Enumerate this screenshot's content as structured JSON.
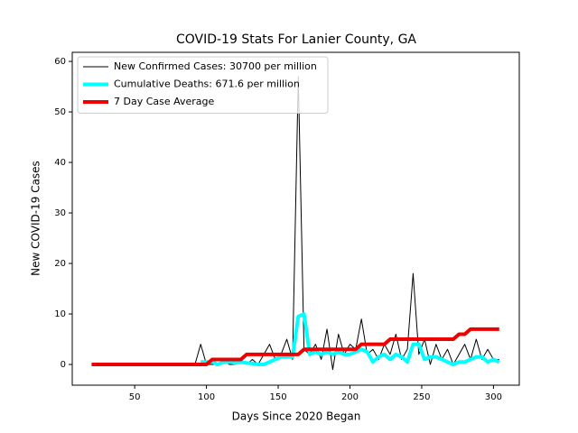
{
  "chart_data": {
    "type": "line",
    "title": "COVID-19 Stats For Lanier County, GA",
    "xlabel": "Days Since 2020 Began",
    "ylabel": "New COVID-19 Cases",
    "x": [
      20,
      24,
      28,
      32,
      36,
      40,
      44,
      48,
      52,
      56,
      60,
      64,
      68,
      72,
      76,
      80,
      84,
      88,
      92,
      96,
      100,
      104,
      108,
      112,
      116,
      120,
      124,
      128,
      132,
      136,
      140,
      144,
      148,
      152,
      156,
      160,
      164,
      168,
      172,
      176,
      180,
      184,
      188,
      192,
      196,
      200,
      204,
      208,
      212,
      216,
      220,
      224,
      228,
      232,
      236,
      240,
      244,
      248,
      252,
      256,
      260,
      264,
      268,
      272,
      276,
      280,
      284,
      288,
      292,
      296,
      300,
      304
    ],
    "series": [
      {
        "name": "New Confirmed Cases: 30700 per million",
        "color": "#000000",
        "linewidth": 1,
        "values": [
          null,
          null,
          null,
          null,
          null,
          null,
          null,
          null,
          null,
          null,
          null,
          null,
          null,
          null,
          null,
          null,
          null,
          0,
          0,
          4,
          0,
          0,
          0,
          1,
          0,
          0,
          1,
          0,
          1,
          0,
          2,
          4,
          1,
          2,
          5,
          1,
          57,
          3,
          2,
          4,
          1,
          7,
          -1,
          6,
          2,
          4,
          3,
          9,
          2,
          3,
          1,
          4,
          2,
          6,
          1,
          3,
          18,
          2,
          5,
          0,
          4,
          1,
          3,
          0,
          2,
          4,
          1,
          5,
          1,
          3,
          1,
          1
        ]
      },
      {
        "name": "Cumulative Deaths: 671.6 per million",
        "color": "#00ffff",
        "linewidth": 4,
        "values": [
          null,
          null,
          null,
          null,
          null,
          null,
          null,
          null,
          null,
          null,
          null,
          null,
          null,
          null,
          null,
          null,
          null,
          null,
          null,
          0.5,
          0.5,
          0.5,
          0,
          0.5,
          0.5,
          0.3,
          0.5,
          0.3,
          0.2,
          0,
          0,
          0.5,
          1,
          1.5,
          1.5,
          1.5,
          9.5,
          10,
          2,
          2.5,
          2,
          2.5,
          2,
          2.5,
          2,
          2,
          2.5,
          3,
          2.5,
          0.5,
          1.5,
          2,
          1,
          2,
          1.5,
          0.5,
          4,
          4,
          1,
          1.5,
          1.5,
          1,
          0.5,
          0,
          0.5,
          0.5,
          1,
          1.5,
          1.5,
          0.5,
          1,
          0.5
        ]
      },
      {
        "name": "7 Day Case Average",
        "color": "#ee0000",
        "linewidth": 4,
        "values": [
          0,
          0,
          0,
          0,
          0,
          0,
          0,
          0,
          0,
          0,
          0,
          0,
          0,
          0,
          0,
          0,
          0,
          0,
          0,
          0,
          0,
          1,
          1,
          1,
          1,
          1,
          1,
          2,
          2,
          2,
          2,
          2,
          2,
          2,
          2,
          2,
          2,
          3,
          3,
          3,
          3,
          3,
          3,
          3,
          3,
          3,
          3,
          4,
          4,
          4,
          4,
          4,
          5,
          5,
          5,
          5,
          5,
          5,
          5,
          5,
          5,
          5,
          5,
          5,
          6,
          6,
          7,
          7,
          7,
          7,
          7,
          7
        ]
      }
    ],
    "xlim": [
      6.5,
      318
    ],
    "ylim": [
      -4.1,
      61.8
    ],
    "xticks": [
      50,
      100,
      150,
      200,
      250,
      300
    ],
    "yticks": [
      0,
      10,
      20,
      30,
      40,
      50,
      60
    ],
    "legend": "upper left"
  }
}
